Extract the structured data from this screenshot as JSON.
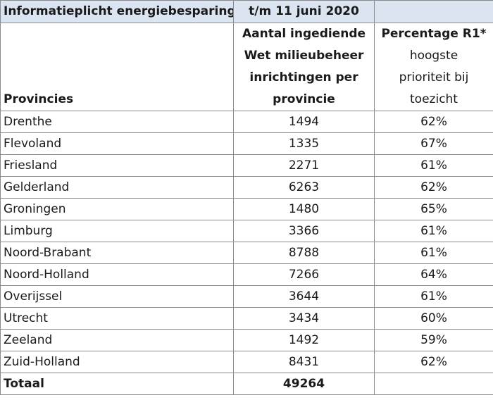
{
  "title": {
    "left": "Informatieplicht energiebesparing",
    "date": "t/m 11 juni 2020",
    "right": ""
  },
  "header": {
    "provinces": "Provincies",
    "count_lines": [
      "Aantal ingediende",
      "Wet milieubeheer",
      "inrichtingen per",
      "provincie"
    ],
    "pct_title": "Percentage R1*",
    "pct_lines": [
      "hoogste",
      "prioriteit bij",
      "toezicht"
    ]
  },
  "rows": [
    {
      "province": "Drenthe",
      "count": "1494",
      "pct": "62%"
    },
    {
      "province": "Flevoland",
      "count": "1335",
      "pct": "67%"
    },
    {
      "province": "Friesland",
      "count": "2271",
      "pct": "61%"
    },
    {
      "province": "Gelderland",
      "count": "6263",
      "pct": "62%"
    },
    {
      "province": "Groningen",
      "count": "1480",
      "pct": "65%"
    },
    {
      "province": "Limburg",
      "count": "3366",
      "pct": "61%"
    },
    {
      "province": "Noord-Brabant",
      "count": "8788",
      "pct": "61%"
    },
    {
      "province": "Noord-Holland",
      "count": "7266",
      "pct": "64%"
    },
    {
      "province": "Overijssel",
      "count": "3644",
      "pct": "61%"
    },
    {
      "province": "Utrecht",
      "count": "3434",
      "pct": "60%"
    },
    {
      "province": "Zeeland",
      "count": "1492",
      "pct": "59%"
    },
    {
      "province": "Zuid-Holland",
      "count": "8431",
      "pct": "62%"
    }
  ],
  "total": {
    "label": "Totaal",
    "count": "49264",
    "pct": ""
  },
  "colors": {
    "title_background": "#dbe5f1",
    "border": "#8a8a8a"
  }
}
